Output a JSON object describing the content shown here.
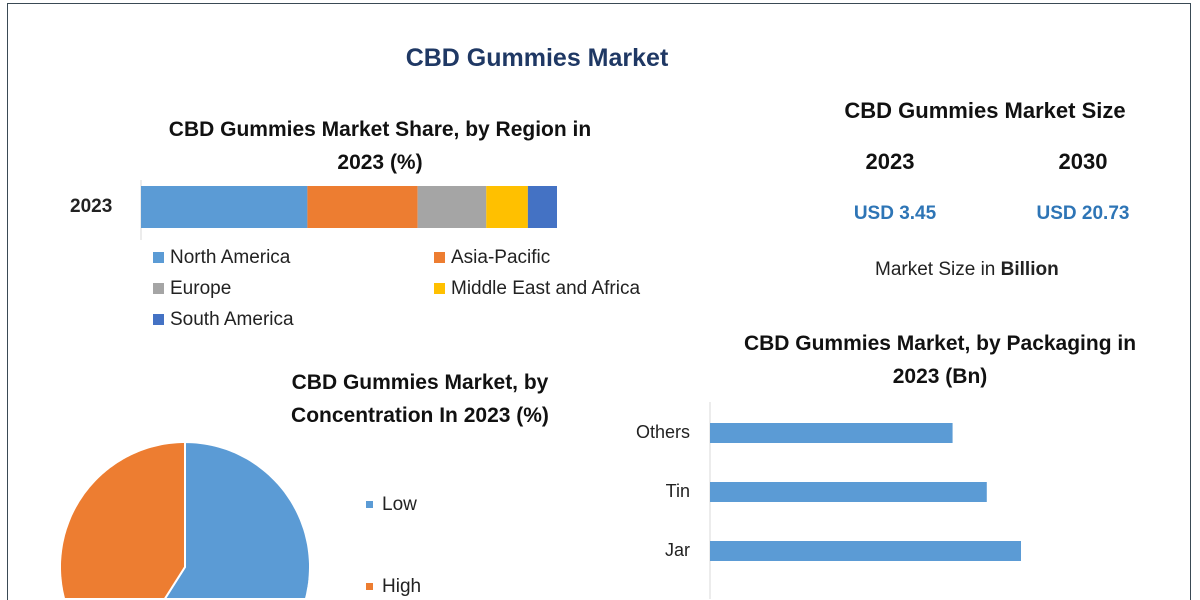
{
  "title": "CBD Gummies Market",
  "colors": {
    "blue": "#5b9bd5",
    "orange": "#ed7d31",
    "gray": "#a5a5a5",
    "yellow": "#ffc000",
    "darkblue": "#4472c4",
    "title": "#1f3864",
    "value": "#2e75b6"
  },
  "market_size": {
    "heading": "CBD Gummies Market Size",
    "year1": "2023",
    "year2": "2030",
    "value1": "USD 3.45",
    "value2": "USD 20.73",
    "note_prefix": "Market Size in ",
    "note_bold": "Billion"
  },
  "chart_data": [
    {
      "type": "bar",
      "orientation": "horizontal-stacked",
      "title_line1": "CBD Gummies Market Share, by Region in",
      "title_line2": "2023 (%)",
      "categories": [
        "2023"
      ],
      "series": [
        {
          "name": "North America",
          "values": [
            40
          ]
        },
        {
          "name": "Asia-Pacific",
          "values": [
            26.5
          ]
        },
        {
          "name": "Europe",
          "values": [
            16.5
          ]
        },
        {
          "name": "Middle East and Africa",
          "values": [
            10
          ]
        },
        {
          "name": "South America",
          "values": [
            7
          ]
        }
      ],
      "legend": "bottom"
    },
    {
      "type": "pie",
      "title_line1": "CBD Gummies Market, by",
      "title_line2": "Concentration In 2023 (%)",
      "labels": [
        "Low",
        "High"
      ],
      "values": [
        59,
        41
      ],
      "legend": "right"
    },
    {
      "type": "bar",
      "orientation": "horizontal",
      "title_line1": "CBD Gummies Market, by Packaging in",
      "title_line2": "2023 (Bn)",
      "categories": [
        "Others",
        "Tin",
        "Jar"
      ],
      "values": [
        0.78,
        0.89,
        1.0
      ],
      "grid": false
    }
  ]
}
